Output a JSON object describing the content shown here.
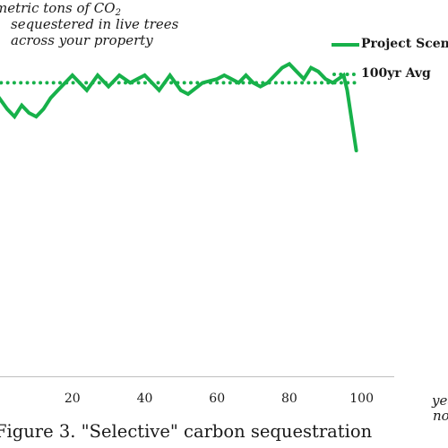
{
  "chart_data": {
    "type": "line",
    "ylabel": {
      "line1": "metric tons of CO",
      "line1_sub": "2",
      "line2": "sequestered in live trees",
      "line3": "across your property"
    },
    "xlabel": {
      "line1": "yea",
      "line2": "no"
    },
    "caption": "Figure 3. \"Selective\" carbon sequestration",
    "x_ticks": [
      20,
      40,
      60,
      80,
      100
    ],
    "xlim": [
      -1.5,
      110
    ],
    "ylim": [
      0,
      100
    ],
    "series": [
      {
        "name": "Project Scena",
        "color": "#17b14a",
        "style": "solid",
        "x": [
          -1,
          2,
          4,
          6,
          8,
          10,
          12,
          14,
          16,
          18,
          20,
          22,
          24,
          27,
          30,
          33,
          36,
          38,
          40,
          42,
          44,
          47,
          50,
          52,
          56,
          60,
          62,
          64,
          66,
          68,
          70,
          72,
          74,
          76,
          78,
          80,
          82,
          84,
          86,
          88,
          90,
          92,
          95,
          96,
          98.5
        ],
        "y": [
          75,
          71,
          69,
          72,
          70,
          69,
          71,
          74,
          76,
          78,
          80,
          78,
          76,
          80,
          77,
          80,
          78,
          79,
          80,
          78,
          76,
          80,
          76,
          75,
          78,
          79,
          80,
          79,
          78,
          80,
          78,
          77,
          78,
          80,
          82,
          83,
          81,
          79,
          82,
          81,
          79,
          78,
          80,
          76,
          60
        ]
      },
      {
        "name": "100yr Avg",
        "color": "#17b14a",
        "style": "dotted",
        "x": [
          -1.5,
          98.5
        ],
        "y": [
          78,
          78
        ]
      }
    ]
  }
}
